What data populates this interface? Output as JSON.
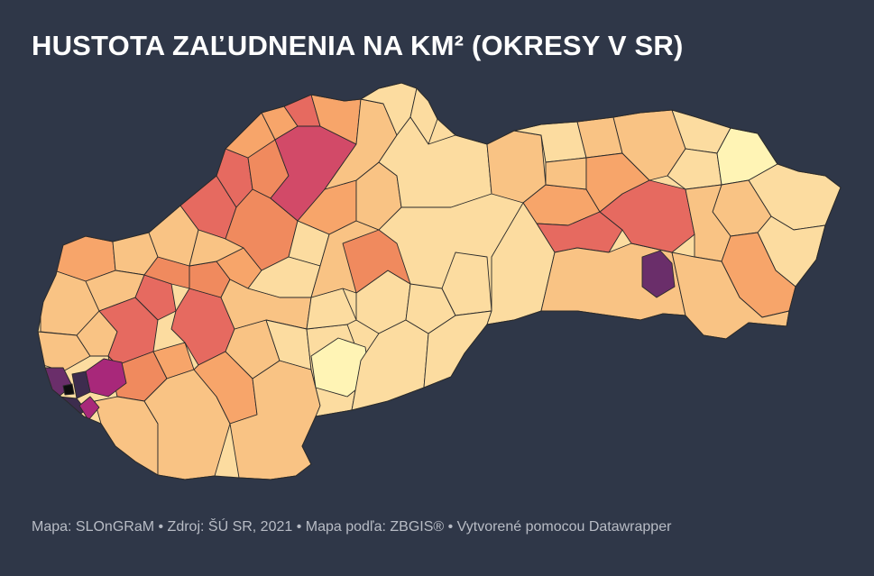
{
  "title": "HUSTOTA ZAĽUDNENIA NA KM² (OKRESY V SR)",
  "footer": "Mapa: SLOnGRaM • Zdroj: ŠÚ SR, 2021 • Mapa podľa: ZBGIS® • Vytvorené pomocou Datawrapper",
  "colors": {
    "background": "#2f3748",
    "scale": [
      "#fff4b5",
      "#fcdca0",
      "#f9c384",
      "#f7a56a",
      "#f08a5e",
      "#e66a60",
      "#d24a68",
      "#a8287a",
      "#6a2e6a",
      "#3d2c4e",
      "#0d0d0d"
    ]
  }
}
